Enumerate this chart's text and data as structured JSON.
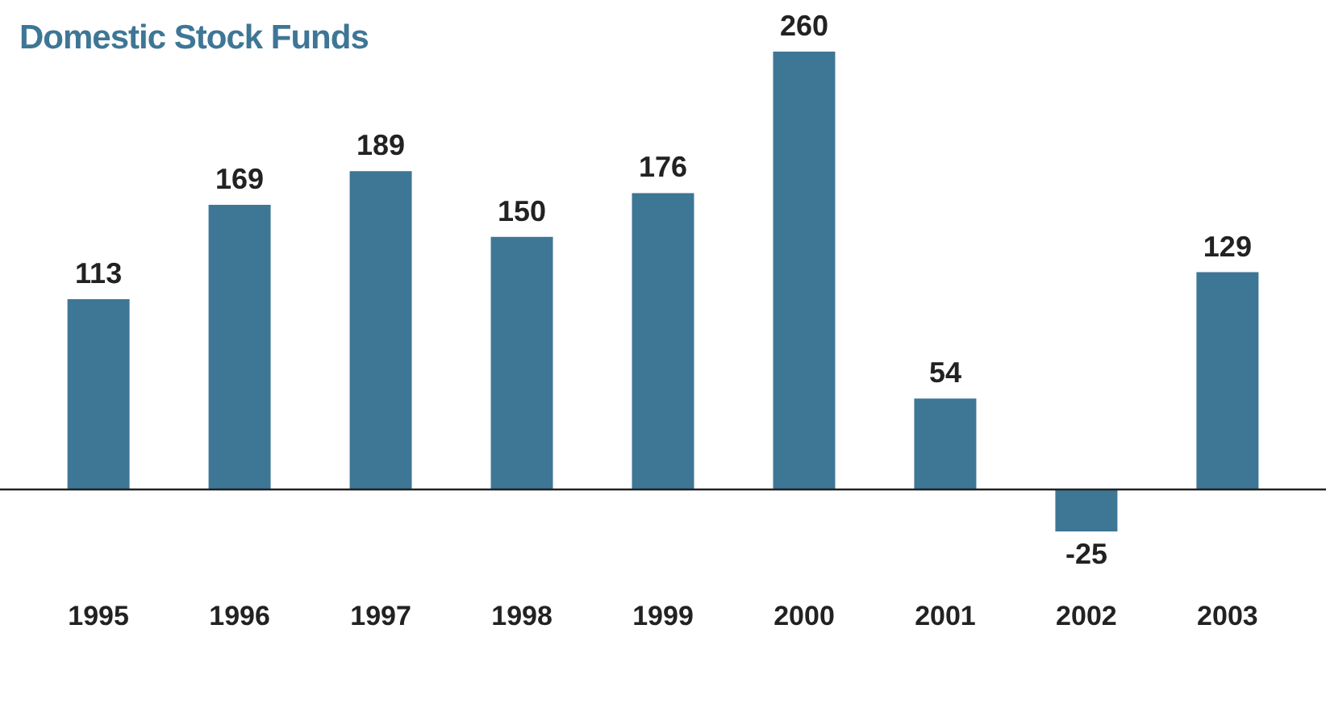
{
  "chart_data": {
    "type": "bar",
    "title": "Domestic Stock Funds",
    "categories": [
      "1995",
      "1996",
      "1997",
      "1998",
      "1999",
      "2000",
      "2001",
      "2002",
      "2003"
    ],
    "values": [
      113,
      169,
      189,
      150,
      176,
      260,
      54,
      -25,
      129
    ],
    "color": "#3e7696",
    "tick_labels": "x",
    "grid": false,
    "legend": false,
    "data_labels": true
  }
}
